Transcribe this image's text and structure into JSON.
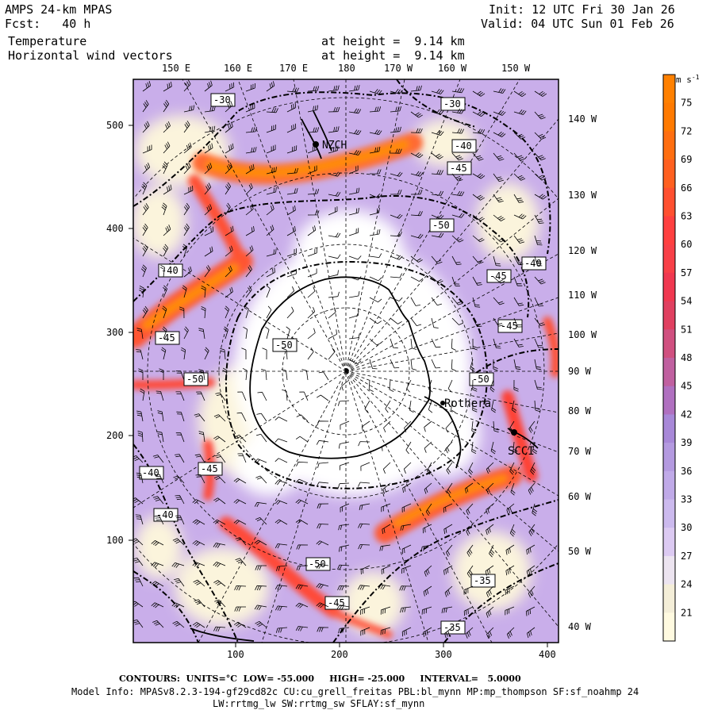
{
  "header": {
    "model": "AMPS 24-km MPAS",
    "fcst_label": "Fcst:",
    "fcst_value": "40 h",
    "field1": "Temperature",
    "field2": "Horizontal wind vectors",
    "height1": "at height =  9.14 km",
    "height2": "at height =  9.14 km",
    "init": "Init: 12 UTC Fri 30 Jan 26",
    "valid": "Valid: 04 UTC Sun 01 Feb 26"
  },
  "map": {
    "lon_top": [
      "150 E",
      "160 E",
      "170 E",
      "180",
      "170 W",
      "160 W",
      "150 W"
    ],
    "lon_right": [
      "140 W",
      "130 W",
      "120 W",
      "110 W",
      "100 W",
      "90 W",
      "80 W",
      "70 W",
      "60 W",
      "50 W",
      "40 W"
    ],
    "x_ticks": [
      "100",
      "200",
      "300",
      "400"
    ],
    "y_ticks": [
      "100",
      "200",
      "300",
      "400",
      "500"
    ],
    "stations": [
      "NZCH",
      "Rothera",
      "SCCI"
    ],
    "contour_labels": [
      "-30",
      "-30",
      "-40",
      "-45",
      "-50",
      "-40",
      "-45",
      "-40",
      "-45",
      "-50",
      "-45",
      "-50",
      "-50",
      "-40",
      "-45",
      "-40",
      "-50",
      "-45",
      "-35",
      "-35"
    ]
  },
  "colorbar": {
    "unit": "m s",
    "unit_exp": "-1",
    "labels": [
      "75",
      "72",
      "69",
      "66",
      "63",
      "60",
      "57",
      "54",
      "51",
      "48",
      "45",
      "42",
      "39",
      "36",
      "33",
      "30",
      "27",
      "24",
      "21"
    ],
    "colors": [
      "#ff8000",
      "#ff7a00",
      "#ff6e10",
      "#ff6020",
      "#ff5030",
      "#ff4040",
      "#f84048",
      "#f03850",
      "#e04060",
      "#d05080",
      "#c060a0",
      "#b070c0",
      "#a888d8",
      "#b49ae0",
      "#c0aae8",
      "#ccbaee",
      "#dccaf2",
      "#ece4f0",
      "#f4eed8",
      "#fffae0"
    ]
  },
  "footer": {
    "contours": "CONTOURS:  UNITS=°C  LOW= -55.000     HIGH= -25.000     INTERVAL=   5.0000",
    "model_info": "Model Info: MPASv8.2.3-194-gf29cd82c CU:cu_grell_freitas PBL:bl_mynn MP:mp_thompson SF:sf_noahmp 24",
    "physics": "LW:rrtmg_lw SW:rrtmg_sw SFLAY:sf_mynn"
  }
}
